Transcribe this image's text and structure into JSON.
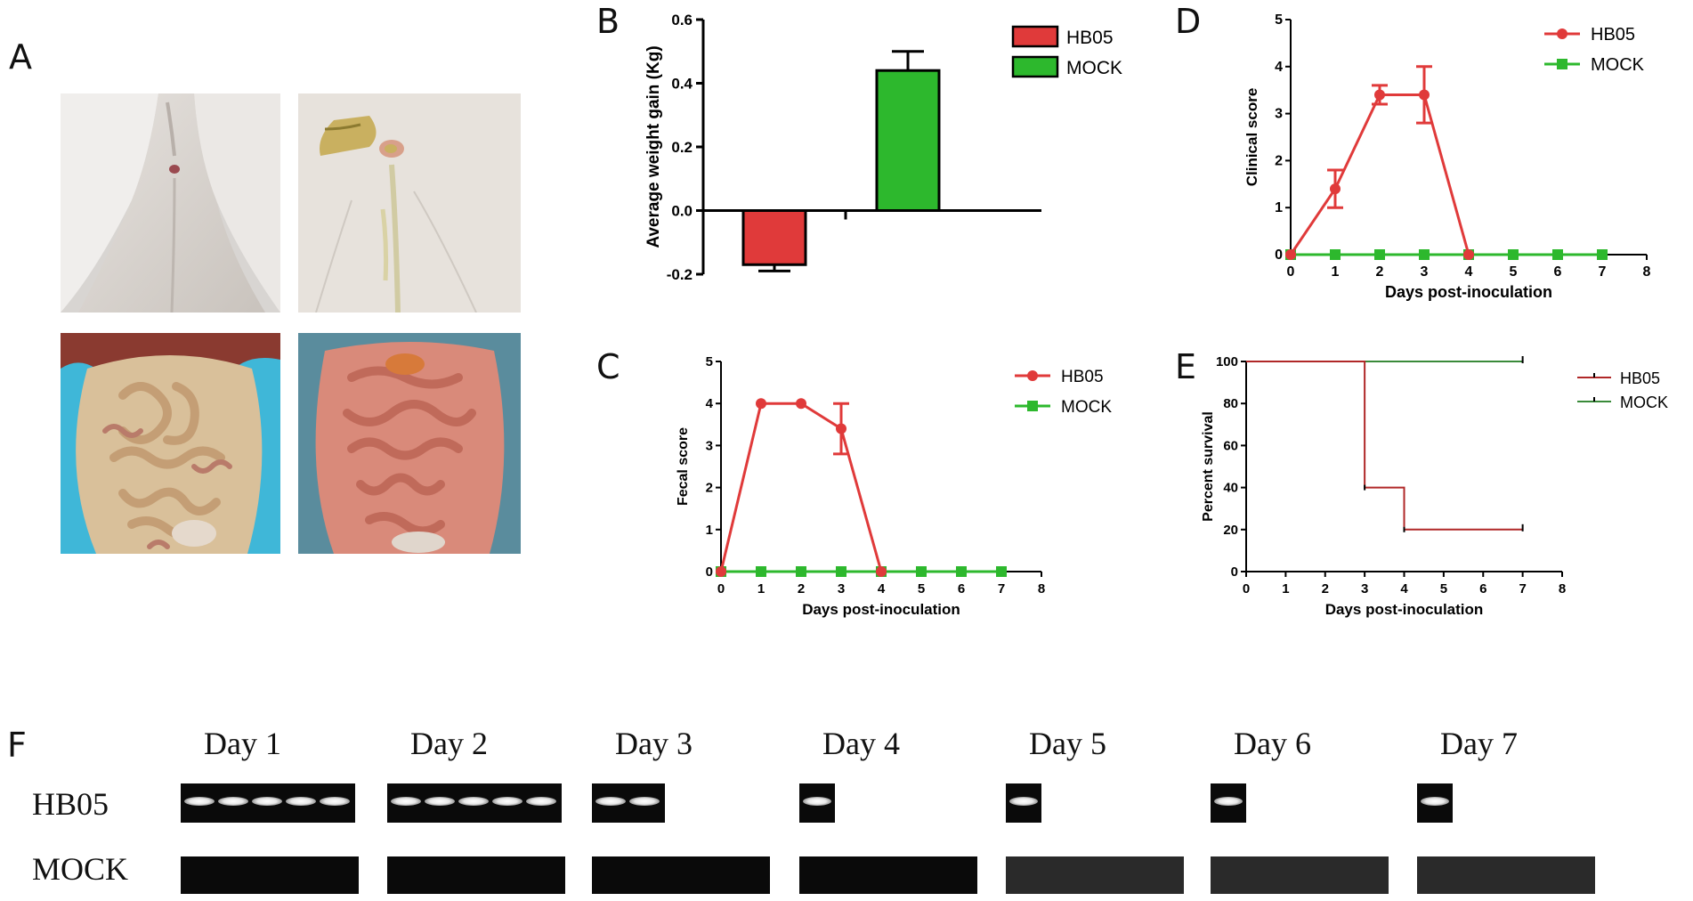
{
  "panels": {
    "A": "A",
    "B": "B",
    "C": "C",
    "D": "D",
    "E": "E",
    "F": "F"
  },
  "photos": [
    {
      "name": "photo-hb05-perianal",
      "desc": "piglet hindquarters clean"
    },
    {
      "name": "photo-hb05-diarrhea",
      "desc": "piglet hindquarters with yellow feces"
    },
    {
      "name": "photo-mock-intestine",
      "desc": "opened abdomen pale intestines"
    },
    {
      "name": "photo-hb05-intestine",
      "desc": "opened abdomen reddened intestines"
    }
  ],
  "colors": {
    "hb05": "#e03a3a",
    "mock": "#2db82d",
    "hb05_dark": "#b02020",
    "mock_dark": "#2a7a2a",
    "hb05_survival": "#b02828",
    "mock_survival": "#3a8a3a"
  },
  "chart_data": [
    {
      "id": "B",
      "type": "bar",
      "categories": [
        "HB05",
        "MOCK"
      ],
      "values": [
        -0.17,
        0.44
      ],
      "errors": [
        0.02,
        0.06
      ],
      "ylabel": "Average weight gain (Kg)",
      "ylim": [
        -0.2,
        0.6
      ],
      "yticks": [
        "-0.2",
        "0.0",
        "0.2",
        "0.4",
        "0.6"
      ],
      "legend": [
        "HB05",
        "MOCK"
      ],
      "legend_position": "right"
    },
    {
      "id": "C",
      "type": "line",
      "xlabel": "Days post-inoculation",
      "ylabel": "Fecal score",
      "xlim": [
        0,
        8
      ],
      "ylim": [
        0,
        5
      ],
      "xticks": [
        "0",
        "1",
        "2",
        "3",
        "4",
        "5",
        "6",
        "7",
        "8"
      ],
      "yticks": [
        "0",
        "1",
        "2",
        "3",
        "4",
        "5"
      ],
      "series": [
        {
          "name": "HB05",
          "x": [
            0,
            1,
            2,
            3,
            4
          ],
          "y": [
            0,
            4,
            4,
            3.4,
            0
          ],
          "err": [
            0,
            0,
            0,
            0.6,
            0
          ],
          "marker": "circle"
        },
        {
          "name": "MOCK",
          "x": [
            0,
            1,
            2,
            3,
            4,
            5,
            6,
            7
          ],
          "y": [
            0,
            0,
            0,
            0,
            0,
            0,
            0,
            0
          ],
          "marker": "square"
        }
      ],
      "legend_position": "right"
    },
    {
      "id": "D",
      "type": "line",
      "xlabel": "Days post-inoculation",
      "ylabel": "Clinical score",
      "xlim": [
        0,
        8
      ],
      "ylim": [
        0,
        5
      ],
      "xticks": [
        "0",
        "1",
        "2",
        "3",
        "4",
        "5",
        "6",
        "7",
        "8"
      ],
      "yticks": [
        "0",
        "1",
        "2",
        "3",
        "4",
        "5"
      ],
      "series": [
        {
          "name": "HB05",
          "x": [
            0,
            1,
            2,
            3,
            4
          ],
          "y": [
            0,
            1.4,
            3.4,
            3.4,
            0
          ],
          "err": [
            0,
            0.4,
            0.2,
            0.6,
            0
          ],
          "marker": "circle"
        },
        {
          "name": "MOCK",
          "x": [
            0,
            1,
            2,
            3,
            4,
            5,
            6,
            7
          ],
          "y": [
            0,
            0,
            0,
            0,
            0,
            0,
            0,
            0
          ],
          "marker": "square"
        }
      ],
      "legend_position": "top-right"
    },
    {
      "id": "E",
      "type": "line",
      "xlabel": "Days post-inoculation",
      "ylabel": "Percent survival",
      "xlim": [
        0,
        8
      ],
      "ylim": [
        0,
        100
      ],
      "xticks": [
        "0",
        "1",
        "2",
        "3",
        "4",
        "5",
        "6",
        "7",
        "8"
      ],
      "yticks": [
        "0",
        "20",
        "40",
        "60",
        "80",
        "100"
      ],
      "series": [
        {
          "name": "HB05",
          "x": [
            0,
            3,
            3,
            4,
            4,
            7
          ],
          "y": [
            100,
            100,
            40,
            40,
            20,
            20
          ],
          "step": true
        },
        {
          "name": "MOCK",
          "x": [
            0,
            7
          ],
          "y": [
            100,
            100
          ],
          "step": true
        }
      ],
      "legend_position": "right"
    }
  ],
  "gel": {
    "days": [
      "Day 1",
      "Day 2",
      "Day 3",
      "Day 4",
      "Day 5",
      "Day 6",
      "Day 7"
    ],
    "rows": [
      "HB05",
      "MOCK"
    ],
    "hb05_bands": [
      5,
      5,
      2,
      1,
      1,
      1,
      1
    ]
  }
}
